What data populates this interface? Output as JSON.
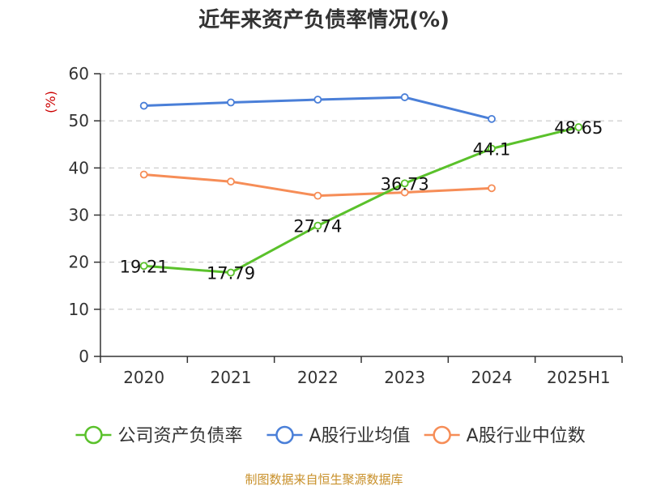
{
  "chart_data": {
    "type": "line",
    "title": "近年来资产负债率情况(%)",
    "ylabel": "(%)",
    "xlabel": "",
    "categories": [
      "2020",
      "2021",
      "2022",
      "2023",
      "2024",
      "2025H1"
    ],
    "ylim": [
      0,
      60
    ],
    "yticks": [
      0,
      10,
      20,
      30,
      40,
      50,
      60
    ],
    "grid": true,
    "legend_position": "bottom",
    "series": [
      {
        "name": "公司资产负债率",
        "color": "#5ac12b",
        "values": [
          19.21,
          17.79,
          27.74,
          36.73,
          44.1,
          48.65
        ],
        "labels": [
          "19.21",
          "17.79",
          "27.74",
          "36.73",
          "44.1",
          "48.65"
        ]
      },
      {
        "name": "A股行业均值",
        "color": "#4a7fd8",
        "values": [
          53.2,
          53.9,
          54.5,
          55.0,
          50.4,
          null
        ]
      },
      {
        "name": "A股行业中位数",
        "color": "#f68d57",
        "values": [
          38.6,
          37.1,
          34.1,
          34.8,
          35.7,
          null
        ]
      }
    ],
    "source": "制图数据来自恒生聚源数据库"
  }
}
